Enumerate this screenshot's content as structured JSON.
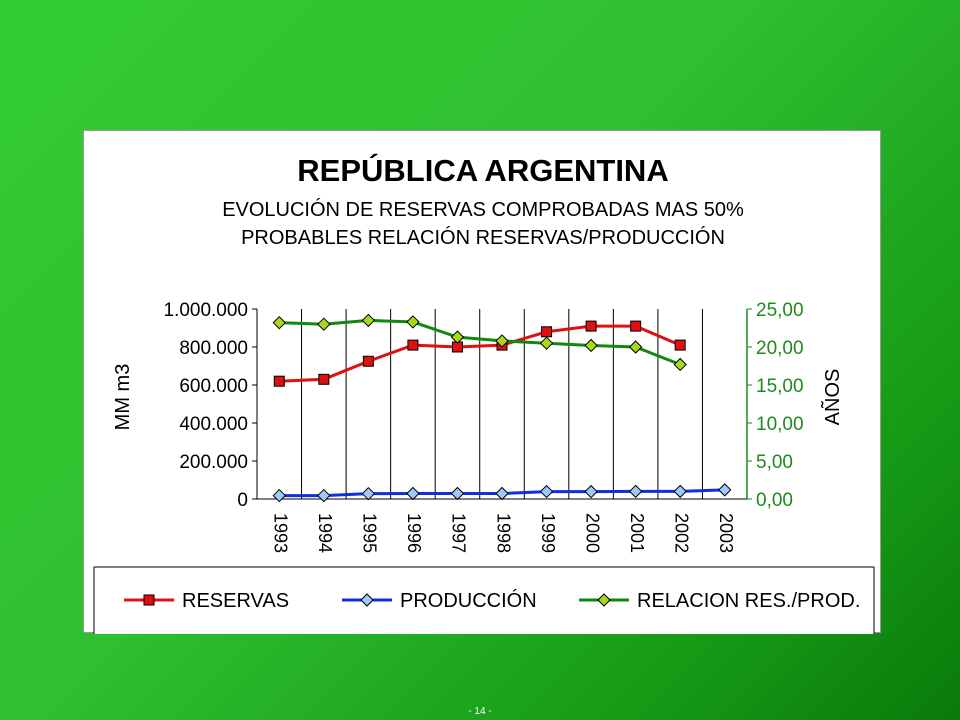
{
  "chart_data": {
    "type": "line",
    "title": "REPÚBLICA  ARGENTINA",
    "subtitle_lines": [
      "EVOLUCIÓN DE RESERVAS COMPROBADAS MAS 50%",
      "PROBABLES RELACIÓN RESERVAS/PRODUCCIÓN"
    ],
    "categories": [
      "1993",
      "1994",
      "1995",
      "1996",
      "1997",
      "1998",
      "1999",
      "2000",
      "2001",
      "2002",
      "2003"
    ],
    "ylabel": "MM m3",
    "ylim": [
      0,
      1000000
    ],
    "yticks": [
      "0",
      "200.000",
      "400.000",
      "600.000",
      "800.000",
      "1.000.000"
    ],
    "y2label": "AÑOS",
    "y2lim": [
      0,
      25
    ],
    "y2ticks": [
      "0,00",
      "5,00",
      "10,00",
      "15,00",
      "20,00",
      "25,00"
    ],
    "grid": "vertical",
    "legend_position": "bottom",
    "series": [
      {
        "name": "RESERVAS",
        "axis": "left",
        "color": "#dd1111",
        "marker": "square",
        "marker_fill": "#dd1111",
        "values": [
          620000,
          630000,
          725000,
          810000,
          800000,
          810000,
          880000,
          910000,
          910000,
          810000,
          null
        ]
      },
      {
        "name": "PRODUCCIÓN",
        "axis": "left",
        "color": "#1030e0",
        "marker": "diamond",
        "marker_fill": "#9fc8ff",
        "values": [
          18000,
          18000,
          28000,
          29000,
          29000,
          29000,
          39000,
          39000,
          40000,
          40000,
          48000
        ]
      },
      {
        "name": "RELACION RES./PROD.",
        "axis": "right",
        "color": "#118811",
        "marker": "diamond",
        "marker_fill": "#a8d81a",
        "values": [
          23.2,
          23.0,
          23.5,
          23.3,
          21.3,
          20.8,
          20.5,
          20.2,
          20.0,
          17.7,
          null
        ]
      }
    ]
  },
  "footer": "- 14 -"
}
